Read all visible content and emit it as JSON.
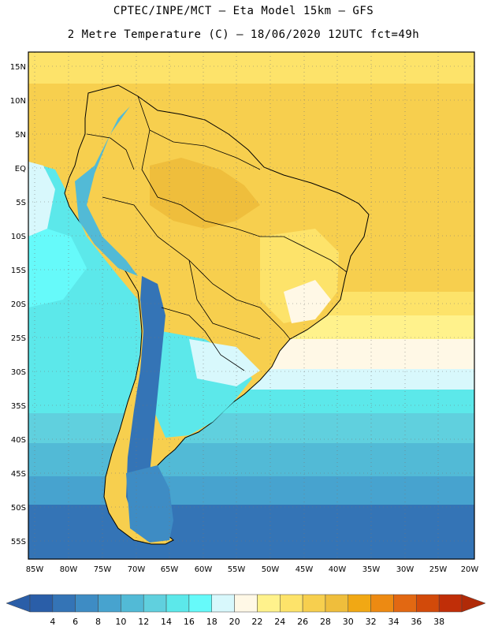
{
  "header": {
    "line1": "CPTEC/INPE/MCT –  Eta Model 15km – GFS",
    "line2": "2 Metre Temperature (C) – 18/06/2020 12UTC fct=49h"
  },
  "map": {
    "lat_labels": [
      "15N",
      "10N",
      "5N",
      "EQ",
      "5S",
      "10S",
      "15S",
      "20S",
      "25S",
      "30S",
      "35S",
      "40S",
      "45S",
      "50S",
      "55S"
    ],
    "lon_labels": [
      "85W",
      "80W",
      "75W",
      "70W",
      "65W",
      "60W",
      "55W",
      "50W",
      "45W",
      "40W",
      "35W",
      "30W",
      "25W",
      "20W"
    ]
  },
  "legend": {
    "values": [
      "4",
      "6",
      "8",
      "10",
      "12",
      "14",
      "16",
      "18",
      "20",
      "22",
      "24",
      "26",
      "28",
      "30",
      "32",
      "34",
      "36",
      "38"
    ],
    "colors": [
      "#2a5ea8",
      "#3474b6",
      "#3e8cc4",
      "#47a3cf",
      "#52bad6",
      "#60d0de",
      "#5ce8ea",
      "#66fafa",
      "#d8f8fc",
      "#fff8e6",
      "#fff28c",
      "#fde36a",
      "#f7cf4e",
      "#efbe3c",
      "#f1a814",
      "#ed8a12",
      "#e26812",
      "#d24a0a",
      "#c02e08"
    ],
    "low_arrow_color": "#2a5ea8",
    "high_arrow_color": "#b02a08"
  }
}
